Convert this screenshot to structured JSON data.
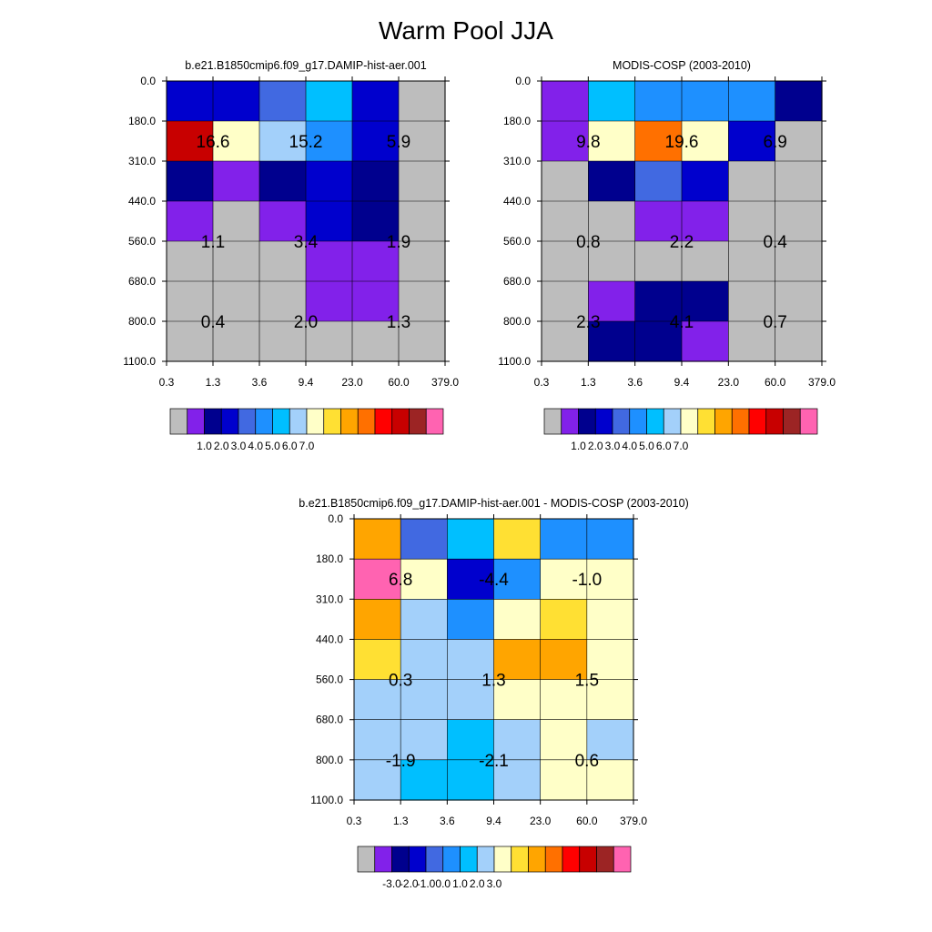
{
  "title": "Warm Pool JJA",
  "y_ticks": [
    "0.0",
    "180.0",
    "310.0",
    "440.0",
    "560.0",
    "680.0",
    "800.0",
    "1100.0"
  ],
  "x_ticks": [
    "0.3",
    "1.3",
    "3.6",
    "9.4",
    "23.0",
    "60.0",
    "379.0"
  ],
  "colors": {
    "palette": [
      "#bdbdbd",
      "#8221ea",
      "#00008e",
      "#0000cd",
      "#4169e1",
      "#1e90ff",
      "#00bfff",
      "#a3d0fa",
      "#ffffc8",
      "#ffe033",
      "#ffa500",
      "#ff7000",
      "#ff0000",
      "#c80000",
      "#9c2424",
      "#ff63b1"
    ]
  },
  "chart_data": [
    {
      "type": "heatmap",
      "title": "b.e21.B1850cmip6.f09_g17.DAMIP-hist-aer.001",
      "cells": [
        [
          3,
          3,
          4,
          6,
          3,
          0
        ],
        [
          13,
          8,
          7,
          5,
          3,
          0
        ],
        [
          2,
          1,
          2,
          3,
          2,
          0
        ],
        [
          1,
          0,
          1,
          3,
          2,
          0
        ],
        [
          0,
          0,
          0,
          1,
          1,
          0
        ],
        [
          0,
          0,
          0,
          1,
          1,
          0
        ],
        [
          0,
          0,
          0,
          0,
          0,
          0
        ]
      ],
      "annotations": [
        {
          "text": "16.6",
          "x": 1.0,
          "y": 1.5
        },
        {
          "text": "15.2",
          "x": 3.0,
          "y": 1.5
        },
        {
          "text": "5.9",
          "x": 5.0,
          "y": 1.5
        },
        {
          "text": "1.1",
          "x": 1.0,
          "y": 4.0
        },
        {
          "text": "3.4",
          "x": 3.0,
          "y": 4.0
        },
        {
          "text": "1.9",
          "x": 5.0,
          "y": 4.0
        },
        {
          "text": "0.4",
          "x": 1.0,
          "y": 6.0
        },
        {
          "text": "2.0",
          "x": 3.0,
          "y": 6.0
        },
        {
          "text": "1.3",
          "x": 5.0,
          "y": 6.0
        }
      ],
      "colorbar_labels": [
        "1.0",
        "2.0",
        "3.0",
        "4.0",
        "5.0",
        "6.0",
        "7.0"
      ]
    },
    {
      "type": "heatmap",
      "title": "MODIS-COSP (2003-2010)",
      "cells": [
        [
          1,
          6,
          5,
          5,
          5,
          2
        ],
        [
          1,
          8,
          11,
          8,
          3,
          0
        ],
        [
          0,
          2,
          4,
          3,
          0,
          0
        ],
        [
          0,
          0,
          1,
          1,
          0,
          0
        ],
        [
          0,
          0,
          0,
          0,
          0,
          0
        ],
        [
          0,
          1,
          2,
          2,
          0,
          0
        ],
        [
          0,
          2,
          2,
          1,
          0,
          0
        ]
      ],
      "annotations": [
        {
          "text": "9.8",
          "x": 1.0,
          "y": 1.5
        },
        {
          "text": "19.6",
          "x": 3.0,
          "y": 1.5
        },
        {
          "text": "6.9",
          "x": 5.0,
          "y": 1.5
        },
        {
          "text": "0.8",
          "x": 1.0,
          "y": 4.0
        },
        {
          "text": "2.2",
          "x": 3.0,
          "y": 4.0
        },
        {
          "text": "0.4",
          "x": 5.0,
          "y": 4.0
        },
        {
          "text": "2.3",
          "x": 1.0,
          "y": 6.0
        },
        {
          "text": "4.1",
          "x": 3.0,
          "y": 6.0
        },
        {
          "text": "0.7",
          "x": 5.0,
          "y": 6.0
        }
      ],
      "colorbar_labels": [
        "1.0",
        "2.0",
        "3.0",
        "4.0",
        "5.0",
        "6.0",
        "7.0"
      ]
    },
    {
      "type": "heatmap",
      "title": "b.e21.B1850cmip6.f09_g17.DAMIP-hist-aer.001 - MODIS-COSP (2003-2010)",
      "cells": [
        [
          10,
          4,
          6,
          9,
          5,
          5
        ],
        [
          15,
          8,
          3,
          5,
          8,
          8
        ],
        [
          10,
          7,
          5,
          8,
          9,
          8
        ],
        [
          9,
          7,
          7,
          10,
          10,
          8
        ],
        [
          7,
          7,
          7,
          8,
          8,
          8
        ],
        [
          7,
          7,
          6,
          7,
          8,
          7
        ],
        [
          7,
          6,
          6,
          7,
          8,
          8
        ]
      ],
      "annotations": [
        {
          "text": "6.8",
          "x": 1.0,
          "y": 1.5
        },
        {
          "text": "-4.4",
          "x": 3.0,
          "y": 1.5
        },
        {
          "text": "-1.0",
          "x": 5.0,
          "y": 1.5
        },
        {
          "text": "0.3",
          "x": 1.0,
          "y": 4.0
        },
        {
          "text": "1.3",
          "x": 3.0,
          "y": 4.0
        },
        {
          "text": "1.5",
          "x": 5.0,
          "y": 4.0
        },
        {
          "text": "-1.9",
          "x": 1.0,
          "y": 6.0
        },
        {
          "text": "-2.1",
          "x": 3.0,
          "y": 6.0
        },
        {
          "text": "0.6",
          "x": 5.0,
          "y": 6.0
        }
      ],
      "colorbar_labels": [
        "-3.0",
        "-2.0",
        "-1.0",
        "0.0",
        "1.0",
        "2.0",
        "3.0"
      ]
    }
  ]
}
